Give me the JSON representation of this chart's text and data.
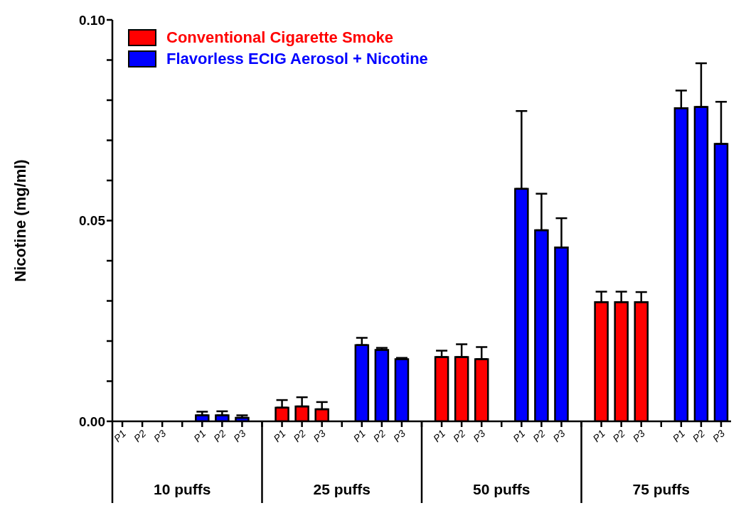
{
  "chart_data": {
    "type": "bar",
    "ylabel": "Nicotine (mg/ml)",
    "categories": [
      "P1",
      "P2",
      "P3",
      null,
      "P1",
      "P2",
      "P3",
      null,
      "P1",
      "P2",
      "P3",
      null,
      "P1",
      "P2",
      "P3",
      null,
      "P1",
      "P2",
      "P3",
      null,
      "P1",
      "P2",
      "P3",
      null,
      "P1",
      "P2",
      "P3",
      null,
      "P1",
      "P2",
      "P3"
    ],
    "series": [
      {
        "name": "Conventional Cigarette Smoke",
        "color": "#ff0000",
        "values": [
          0,
          0,
          0,
          null,
          null,
          null,
          null,
          null,
          0.0034,
          0.0037,
          0.003,
          null,
          null,
          null,
          null,
          null,
          0.016,
          0.016,
          0.0155,
          null,
          null,
          null,
          null,
          null,
          0.0297,
          0.0297,
          0.0297,
          null,
          null,
          null,
          null
        ],
        "errors": [
          null,
          null,
          null,
          null,
          null,
          null,
          null,
          null,
          [
            0.0034,
            0.0053
          ],
          [
            0.0037,
            0.006
          ],
          [
            0.003,
            0.0048
          ],
          null,
          null,
          null,
          null,
          null,
          [
            0.016,
            0.0176
          ],
          [
            0.016,
            0.0192
          ],
          [
            0.0155,
            0.0185
          ],
          null,
          null,
          null,
          null,
          null,
          [
            0.0297,
            0.0323
          ],
          [
            0.0297,
            0.0323
          ],
          [
            0.0297,
            0.0322
          ],
          null,
          null,
          null,
          null
        ]
      },
      {
        "name": "Flavorless ECIG Aerosol + Nicotine",
        "color": "#0000ff",
        "values": [
          null,
          null,
          null,
          null,
          0.0015,
          0.0015,
          0.0009,
          null,
          null,
          null,
          null,
          null,
          0.019,
          0.0178,
          0.0155,
          null,
          null,
          null,
          null,
          null,
          0.0579,
          0.0476,
          0.0433,
          null,
          null,
          null,
          null,
          null,
          0.078,
          0.0783,
          0.0691
        ],
        "errors": [
          null,
          null,
          null,
          null,
          [
            0.0015,
            0.0024
          ],
          [
            0.0015,
            0.0025
          ],
          [
            0.0009,
            0.0015
          ],
          null,
          null,
          null,
          null,
          null,
          [
            0.019,
            0.0208
          ],
          [
            0.0178,
            0.0183
          ],
          [
            0.0155,
            0.0158
          ],
          null,
          null,
          null,
          null,
          null,
          [
            0.0579,
            0.0773
          ],
          [
            0.0476,
            0.0567
          ],
          [
            0.0433,
            0.0506
          ],
          null,
          null,
          null,
          null,
          null,
          [
            0.078,
            0.0824
          ],
          [
            0.0783,
            0.0892
          ],
          [
            0.0691,
            0.0796
          ]
        ]
      }
    ],
    "ylim": [
      0,
      0.1
    ],
    "yticks": [
      {
        "value": 0,
        "label": "0.00"
      },
      {
        "value": 0.01,
        "label": null
      },
      {
        "value": 0.02,
        "label": null
      },
      {
        "value": 0.03,
        "label": null
      },
      {
        "value": 0.04,
        "label": null
      },
      {
        "value": 0.05,
        "label": "0.05"
      },
      {
        "value": 0.06,
        "label": null
      },
      {
        "value": 0.07,
        "label": null
      },
      {
        "value": 0.08,
        "label": null
      },
      {
        "value": 0.09,
        "label": null
      },
      {
        "value": 0.1,
        "label": "0.10"
      }
    ],
    "annotations": [
      "10 puffs",
      "25 puffs",
      "50 puffs",
      "75 puffs"
    ],
    "legend": "top left"
  }
}
